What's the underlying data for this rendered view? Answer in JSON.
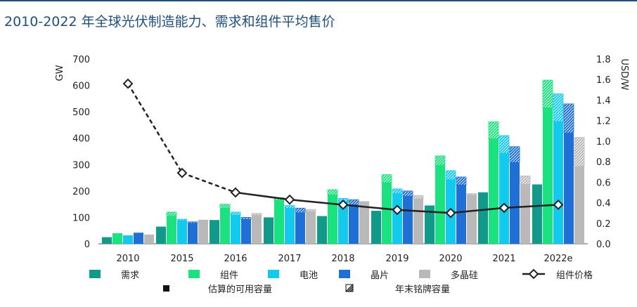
{
  "header": {
    "title": "2010-2022 年全球光伏制造能力、需求和组件平均售价"
  },
  "chart_data": {
    "type": "bar",
    "title": "2010-2022 年全球光伏制造能力、需求和组件平均售价",
    "ylabel_left": "GW",
    "ylabel_right": "USD/W",
    "ylim_left": [
      0,
      700
    ],
    "ylim_right": [
      0,
      1.8
    ],
    "left_ticks": [
      "0",
      "100",
      "200",
      "300",
      "400",
      "500",
      "600",
      "700"
    ],
    "right_ticks": [
      "0.0",
      "0.2",
      "0.4",
      "0.6",
      "0.8",
      "1.0",
      "1.2",
      "1.4",
      "1.6",
      "1.8"
    ],
    "categories": [
      "2010",
      "2015",
      "2016",
      "2017",
      "2018",
      "2019",
      "2020",
      "2021",
      "2022e"
    ],
    "series": [
      {
        "name": "需求",
        "color": "#11998a",
        "values": [
          25,
          65,
          90,
          100,
          105,
          125,
          145,
          195,
          225
        ],
        "nameplate_total": [
          25,
          65,
          90,
          100,
          105,
          125,
          145,
          195,
          225
        ]
      },
      {
        "name": "组件",
        "color": "#19e27e",
        "values": [
          40,
          105,
          135,
          165,
          185,
          232,
          298,
          398,
          515
        ],
        "nameplate_total": [
          40,
          120,
          150,
          175,
          205,
          262,
          333,
          462,
          620
        ]
      },
      {
        "name": "电池",
        "color": "#12c9ee",
        "values": [
          32,
          88,
          108,
          135,
          160,
          190,
          243,
          343,
          463
        ],
        "nameplate_total": [
          32,
          93,
          120,
          145,
          172,
          208,
          277,
          410,
          568
        ]
      },
      {
        "name": "晶片",
        "color": "#1f6fd6",
        "values": [
          42,
          78,
          92,
          118,
          148,
          180,
          223,
          308,
          420
        ],
        "nameplate_total": [
          42,
          83,
          100,
          135,
          167,
          200,
          253,
          368,
          530
        ]
      },
      {
        "name": "多晶硅",
        "color": "#b9b9b9",
        "values": [
          35,
          88,
          108,
          122,
          158,
          170,
          185,
          225,
          293
        ],
        "nameplate_total": [
          35,
          90,
          115,
          130,
          160,
          183,
          190,
          257,
          403
        ]
      }
    ],
    "line_series": {
      "name": "组件价格",
      "axis": "right",
      "values": [
        1.56,
        0.69,
        0.5,
        0.43,
        0.38,
        0.33,
        0.3,
        0.35,
        0.38
      ],
      "dashed_segments": [
        0,
        1
      ]
    },
    "legend": {
      "items": [
        "需求",
        "组件",
        "电池",
        "晶片",
        "多晶硅",
        "组件价格"
      ],
      "notes": [
        "估算的可用容量",
        "年末铭牌容量"
      ],
      "position": "bottom"
    }
  }
}
